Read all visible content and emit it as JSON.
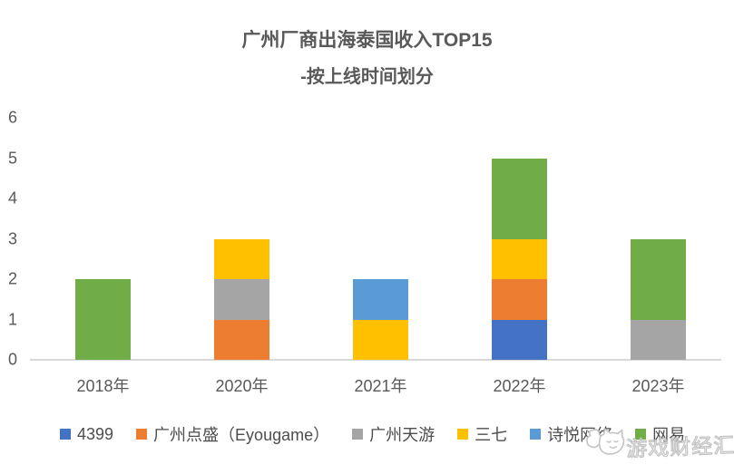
{
  "chart_data": {
    "type": "bar",
    "stacked": true,
    "title": "广州厂商出海泰国收入TOP15",
    "subtitle": "-按上线时间划分",
    "categories": [
      "2018年",
      "2020年",
      "2021年",
      "2022年",
      "2023年"
    ],
    "series": [
      {
        "name": "4399",
        "color": "#4472C4",
        "values": [
          0,
          0,
          0,
          1,
          0
        ]
      },
      {
        "name": "广州点盛（Eyougame）",
        "color": "#ED7D31",
        "values": [
          0,
          1,
          0,
          1,
          0
        ]
      },
      {
        "name": "广州天游",
        "color": "#A5A5A5",
        "values": [
          0,
          1,
          0,
          0,
          1
        ]
      },
      {
        "name": "三七",
        "color": "#FFC000",
        "values": [
          0,
          1,
          1,
          1,
          0
        ]
      },
      {
        "name": "诗悦网络",
        "color": "#5B9BD5",
        "values": [
          0,
          0,
          1,
          0,
          0
        ]
      },
      {
        "name": "网易",
        "color": "#70AD47",
        "values": [
          2,
          0,
          0,
          2,
          2
        ]
      }
    ],
    "y_ticks": [
      0,
      1,
      2,
      3,
      4,
      5,
      6
    ],
    "ylim": [
      0,
      6
    ],
    "grid": false,
    "legend_position": "bottom",
    "text_color": "#595959",
    "axis_line_color": "#D9D9D9"
  },
  "watermark": {
    "text": "游戏财经汇",
    "icon": "cat-mascot-icon"
  }
}
